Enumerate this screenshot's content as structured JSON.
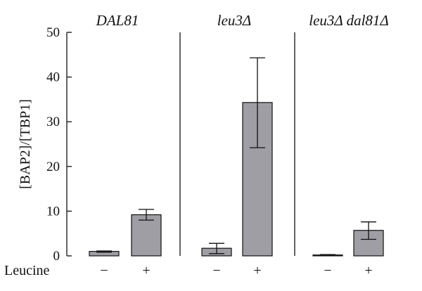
{
  "chart_data": {
    "type": "bar",
    "ylabel": "[BAP2]/[TBP1]",
    "ylim": [
      0,
      50
    ],
    "yticks": [
      0,
      10,
      20,
      30,
      40,
      50
    ],
    "groups": [
      {
        "title": "DAL81",
        "bars": [
          {
            "category": "−",
            "value": 1.0,
            "err_low": 0.8,
            "err_high": 1.1
          },
          {
            "category": "+",
            "value": 9.2,
            "err_low": 8.0,
            "err_high": 10.4
          }
        ]
      },
      {
        "title": "leu3Δ",
        "bars": [
          {
            "category": "−",
            "value": 1.7,
            "err_low": 0.5,
            "err_high": 2.8
          },
          {
            "category": "+",
            "value": 34.3,
            "err_low": 24.2,
            "err_high": 44.3
          }
        ]
      },
      {
        "title": "leu3Δ dal81Δ",
        "bars": [
          {
            "category": "−",
            "value": 0.2,
            "err_low": 0.1,
            "err_high": 0.3
          },
          {
            "category": "+",
            "value": 5.7,
            "err_low": 3.7,
            "err_high": 7.6
          }
        ]
      }
    ],
    "xlabel": "Leucine",
    "bar_color": "#9e9ea4",
    "grid": false
  }
}
